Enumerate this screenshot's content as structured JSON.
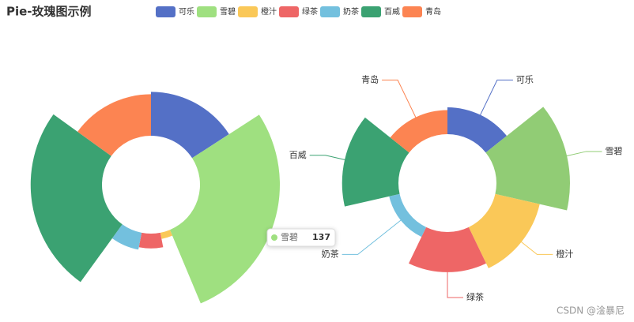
{
  "chart_data": [
    {
      "type": "pie",
      "rose": "radius",
      "title": "Pie-玫瑰图示例",
      "categories": [
        "可乐",
        "雪碧",
        "橙汁",
        "绿茶",
        "奶茶",
        "百威",
        "青岛"
      ],
      "values": [
        78,
        137,
        16,
        30,
        34,
        123,
        74
      ],
      "colors": [
        "#5470c6",
        "#9fe080",
        "#fac858",
        "#ee6666",
        "#73c0de",
        "#3ba272",
        "#fc8452"
      ],
      "legend": true
    },
    {
      "type": "pie",
      "rose": "area",
      "categories": [
        "可乐",
        "雪碧",
        "橙汁",
        "绿茶",
        "奶茶",
        "百威",
        "青岛"
      ],
      "values": [
        50,
        137,
        85,
        75,
        20,
        105,
        45
      ],
      "colors": [
        "#5470c6",
        "#91cc75",
        "#fac858",
        "#ee6666",
        "#73c0de",
        "#3ba272",
        "#fc8452"
      ],
      "labels": true
    }
  ],
  "watermark": "CSDN @淦暴尼"
}
